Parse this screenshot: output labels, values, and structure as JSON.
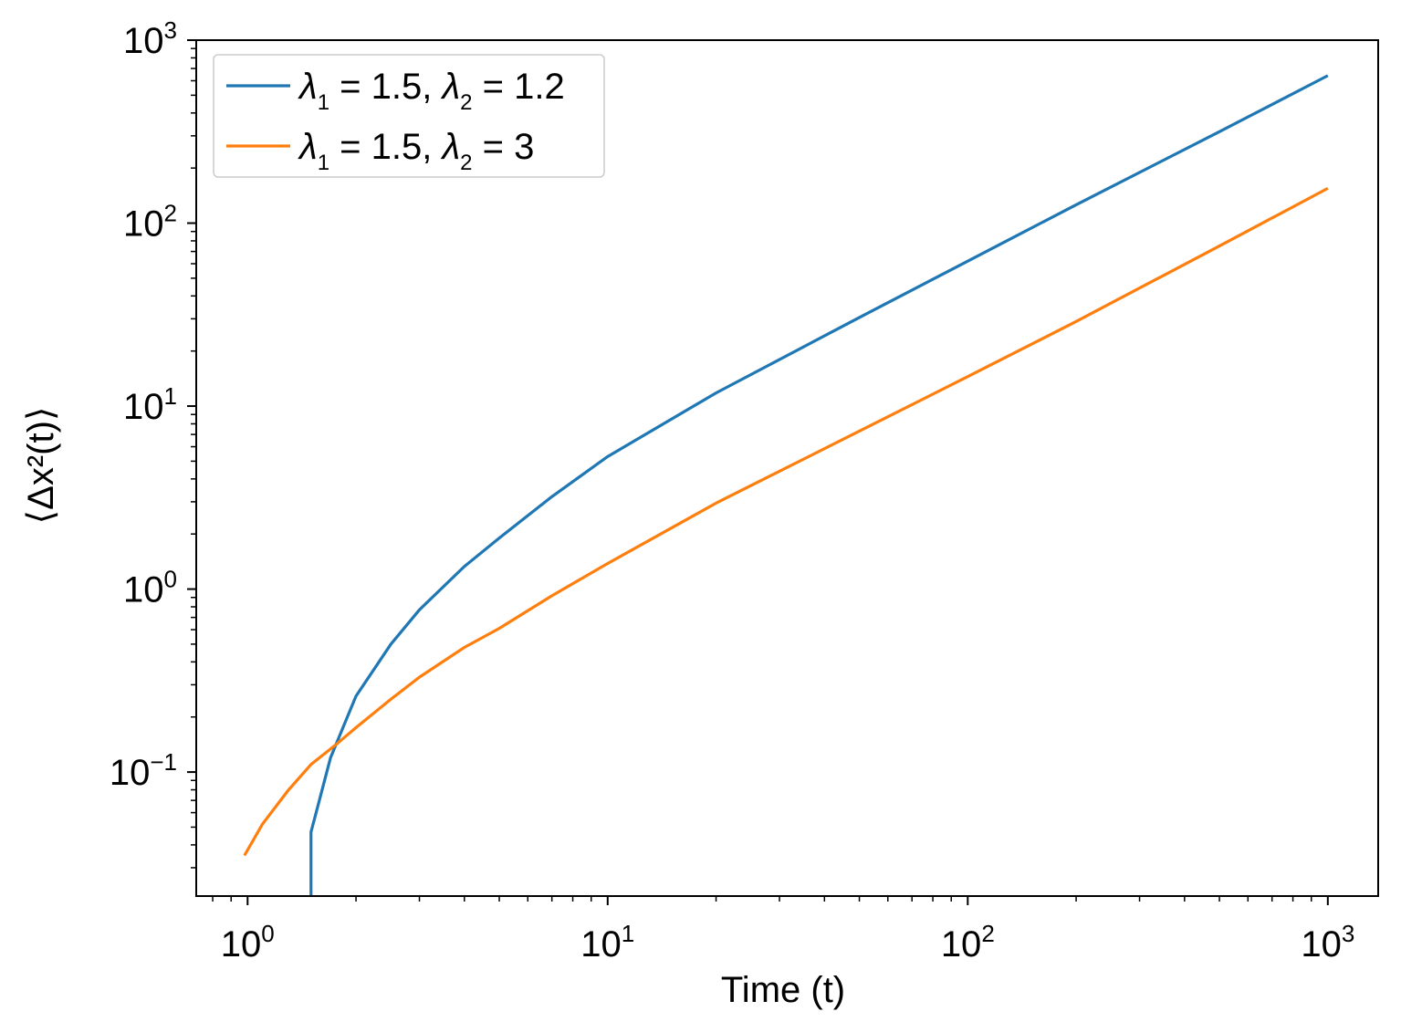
{
  "chart_data": {
    "type": "line",
    "title": "",
    "xlabel": "Time (t)",
    "ylabel": "⟨Δx²(t)⟩",
    "xscale": "log",
    "yscale": "log",
    "xlim": [
      0.72,
      1380
    ],
    "ylim": [
      0.021,
      1000
    ],
    "grid": false,
    "legend_position": "top-left",
    "x_ticks": [
      {
        "value": 1,
        "base": "10",
        "exp": "0"
      },
      {
        "value": 10,
        "base": "10",
        "exp": "1"
      },
      {
        "value": 100,
        "base": "10",
        "exp": "2"
      },
      {
        "value": 1000,
        "base": "10",
        "exp": "3"
      }
    ],
    "y_ticks": [
      {
        "value": 0.1,
        "base": "10",
        "exp": "−1"
      },
      {
        "value": 1,
        "base": "10",
        "exp": "0"
      },
      {
        "value": 10,
        "base": "10",
        "exp": "1"
      },
      {
        "value": 100,
        "base": "10",
        "exp": "2"
      },
      {
        "value": 1000,
        "base": "10",
        "exp": "3"
      }
    ],
    "series": [
      {
        "name": "λ1 = 1.5, λ2 = 1.2",
        "legend_parts": {
          "sym1": "λ",
          "sub1": "1",
          "mid": " = 1.5, ",
          "sym2": "λ",
          "sub2": "2",
          "end": " = 1.2"
        },
        "color": "#1f77b4",
        "x": [
          1.5,
          1.5,
          1.55,
          1.7,
          2.0,
          2.5,
          3.0,
          4.0,
          5.0,
          7.0,
          10,
          20,
          50,
          100,
          200,
          500,
          1000
        ],
        "y": [
          0.021,
          0.047,
          0.06,
          0.12,
          0.26,
          0.5,
          0.77,
          1.33,
          1.9,
          3.2,
          5.3,
          11.8,
          30.5,
          62,
          126,
          316,
          640
        ]
      },
      {
        "name": "λ1 = 1.5, λ2 = 3",
        "legend_parts": {
          "sym1": "λ",
          "sub1": "1",
          "mid": " = 1.5, ",
          "sym2": "λ",
          "sub2": "2",
          "end": " = 3"
        },
        "color": "#ff7f0e",
        "x": [
          0.98,
          1.1,
          1.3,
          1.5,
          1.75,
          2.0,
          2.5,
          3.0,
          4.0,
          5.0,
          7.0,
          10,
          20,
          50,
          100,
          200,
          500,
          1000
        ],
        "y": [
          0.035,
          0.052,
          0.08,
          0.11,
          0.14,
          0.175,
          0.25,
          0.33,
          0.48,
          0.61,
          0.92,
          1.38,
          2.95,
          7.3,
          14.5,
          29,
          75,
          155
        ]
      }
    ]
  }
}
